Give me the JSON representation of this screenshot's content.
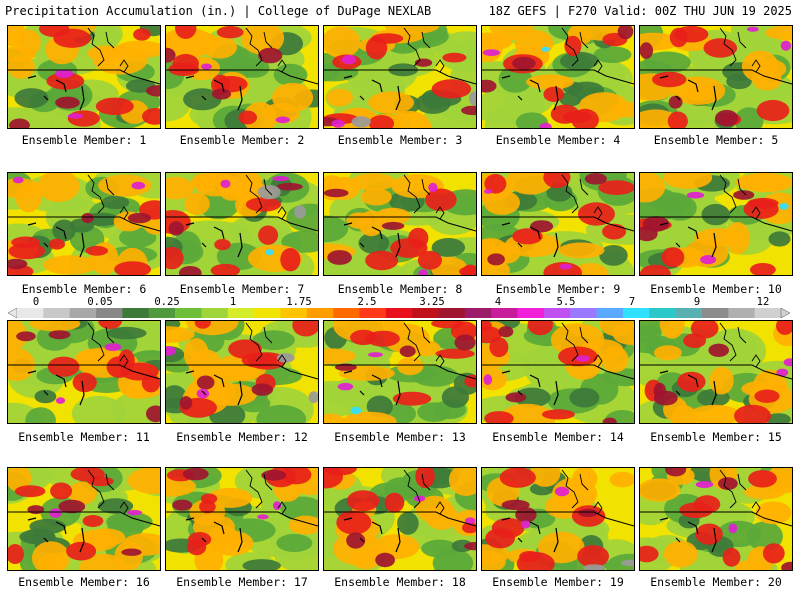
{
  "header": {
    "left": "Precipitation Accumulation (in.) | College of DuPage NEXLAB",
    "right": "18Z GEFS | F270 Valid: 00Z THU JUN 19 2025"
  },
  "panels": [
    {
      "label": "Ensemble Member: 1"
    },
    {
      "label": "Ensemble Member: 2"
    },
    {
      "label": "Ensemble Member: 3"
    },
    {
      "label": "Ensemble Member: 4"
    },
    {
      "label": "Ensemble Member: 5"
    },
    {
      "label": "Ensemble Member: 6"
    },
    {
      "label": "Ensemble Member: 7"
    },
    {
      "label": "Ensemble Member: 8"
    },
    {
      "label": "Ensemble Member: 9"
    },
    {
      "label": "Ensemble Member: 10"
    },
    {
      "label": "Ensemble Member: 11"
    },
    {
      "label": "Ensemble Member: 12"
    },
    {
      "label": "Ensemble Member: 13"
    },
    {
      "label": "Ensemble Member: 14"
    },
    {
      "label": "Ensemble Member: 15"
    },
    {
      "label": "Ensemble Member: 16"
    },
    {
      "label": "Ensemble Member: 17"
    },
    {
      "label": "Ensemble Member: 18"
    },
    {
      "label": "Ensemble Member: 19"
    },
    {
      "label": "Ensemble Member: 20"
    }
  ],
  "colorbar": {
    "tick_labels": [
      "0",
      "0.05",
      "0.25",
      "1",
      "1.75",
      "2.5",
      "3.25",
      "4",
      "5.5",
      "7",
      "9",
      "12"
    ],
    "colors": [
      "#e8e8e8",
      "#c8c8c8",
      "#a8a8a8",
      "#888888",
      "#3d7a3a",
      "#4f9a3c",
      "#6fbe3a",
      "#9fd43a",
      "#d4ec2a",
      "#f1e400",
      "#ffc400",
      "#ff9c00",
      "#ff6a00",
      "#ff3a1a",
      "#e8101a",
      "#c0101a",
      "#a01530",
      "#9c1c6a",
      "#c81c9c",
      "#f020d8",
      "#c050f0",
      "#9a78ff",
      "#5aa8ff",
      "#30e0ff",
      "#2ac8c8",
      "#58b0b0",
      "#8c8c8c",
      "#b0b0b0",
      "#d0d0d0"
    ]
  },
  "colors": {
    "background": "#f1e200",
    "light_green": "#9fd43a",
    "green": "#5aa83a",
    "dark_green": "#3d7a3a",
    "orange": "#ffb000",
    "red": "#e8201a",
    "dark_red": "#a01530",
    "magenta": "#e020d0",
    "cyan": "#30e0ff",
    "gray": "#9a9a9a"
  }
}
